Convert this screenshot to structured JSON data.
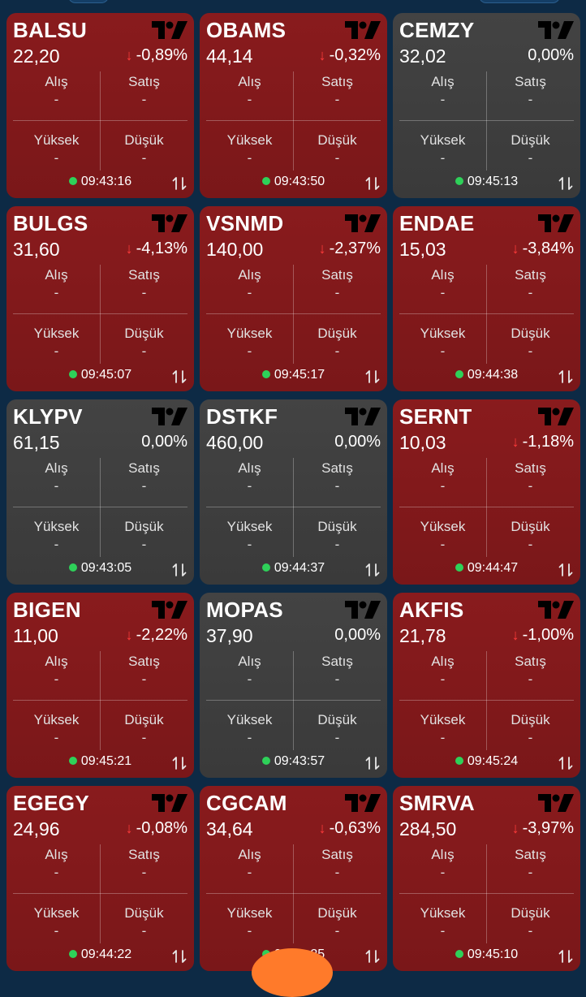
{
  "labels": {
    "bid": "Alış",
    "ask": "Satış",
    "high": "Yüksek",
    "low": "Düşük",
    "empty": "-"
  },
  "colors": {
    "down_bg": "#891b1d",
    "flat_bg": "#434343",
    "live_dot": "#2ed159",
    "down_arrow": "#ff3b3b",
    "background": "#0d2a45",
    "fab": "#ff7a2a"
  },
  "icons": {
    "chart": "tradingview-logo-icon",
    "sort": "swap-vert-icon",
    "status": "live-dot-icon",
    "trend_down": "arrow-down-icon"
  },
  "tiles": [
    {
      "symbol": "BALSU",
      "price": "22,20",
      "change": "-0,89%",
      "direction": "down",
      "time": "09:43:16",
      "bid": "-",
      "ask": "-",
      "high": "-",
      "low": "-"
    },
    {
      "symbol": "OBAMS",
      "price": "44,14",
      "change": "-0,32%",
      "direction": "down",
      "time": "09:43:50",
      "bid": "-",
      "ask": "-",
      "high": "-",
      "low": "-"
    },
    {
      "symbol": "CEMZY",
      "price": "32,02",
      "change": "0,00%",
      "direction": "flat",
      "time": "09:45:13",
      "bid": "-",
      "ask": "-",
      "high": "-",
      "low": "-"
    },
    {
      "symbol": "BULGS",
      "price": "31,60",
      "change": "-4,13%",
      "direction": "down",
      "time": "09:45:07",
      "bid": "-",
      "ask": "-",
      "high": "-",
      "low": "-"
    },
    {
      "symbol": "VSNMD",
      "price": "140,00",
      "change": "-2,37%",
      "direction": "down",
      "time": "09:45:17",
      "bid": "-",
      "ask": "-",
      "high": "-",
      "low": "-"
    },
    {
      "symbol": "ENDAE",
      "price": "15,03",
      "change": "-3,84%",
      "direction": "down",
      "time": "09:44:38",
      "bid": "-",
      "ask": "-",
      "high": "-",
      "low": "-"
    },
    {
      "symbol": "KLYPV",
      "price": "61,15",
      "change": "0,00%",
      "direction": "flat",
      "time": "09:43:05",
      "bid": "-",
      "ask": "-",
      "high": "-",
      "low": "-"
    },
    {
      "symbol": "DSTKF",
      "price": "460,00",
      "change": "0,00%",
      "direction": "flat",
      "time": "09:44:37",
      "bid": "-",
      "ask": "-",
      "high": "-",
      "low": "-"
    },
    {
      "symbol": "SERNT",
      "price": "10,03",
      "change": "-1,18%",
      "direction": "down",
      "time": "09:44:47",
      "bid": "-",
      "ask": "-",
      "high": "-",
      "low": "-"
    },
    {
      "symbol": "BIGEN",
      "price": "11,00",
      "change": "-2,22%",
      "direction": "down",
      "time": "09:45:21",
      "bid": "-",
      "ask": "-",
      "high": "-",
      "low": "-"
    },
    {
      "symbol": "MOPAS",
      "price": "37,90",
      "change": "0,00%",
      "direction": "flat",
      "time": "09:43:57",
      "bid": "-",
      "ask": "-",
      "high": "-",
      "low": "-"
    },
    {
      "symbol": "AKFIS",
      "price": "21,78",
      "change": "-1,00%",
      "direction": "down",
      "time": "09:45:24",
      "bid": "-",
      "ask": "-",
      "high": "-",
      "low": "-"
    },
    {
      "symbol": "EGEGY",
      "price": "24,96",
      "change": "-0,08%",
      "direction": "down",
      "time": "09:44:22",
      "bid": "-",
      "ask": "-",
      "high": "-",
      "low": "-"
    },
    {
      "symbol": "CGCAM",
      "price": "34,64",
      "change": "-0,63%",
      "direction": "down",
      "time": "09:4_:25",
      "bid": "-",
      "ask": "-",
      "high": "-",
      "low": "-"
    },
    {
      "symbol": "SMRVA",
      "price": "284,50",
      "change": "-3,97%",
      "direction": "down",
      "time": "09:45:10",
      "bid": "-",
      "ask": "-",
      "high": "-",
      "low": "-"
    }
  ]
}
